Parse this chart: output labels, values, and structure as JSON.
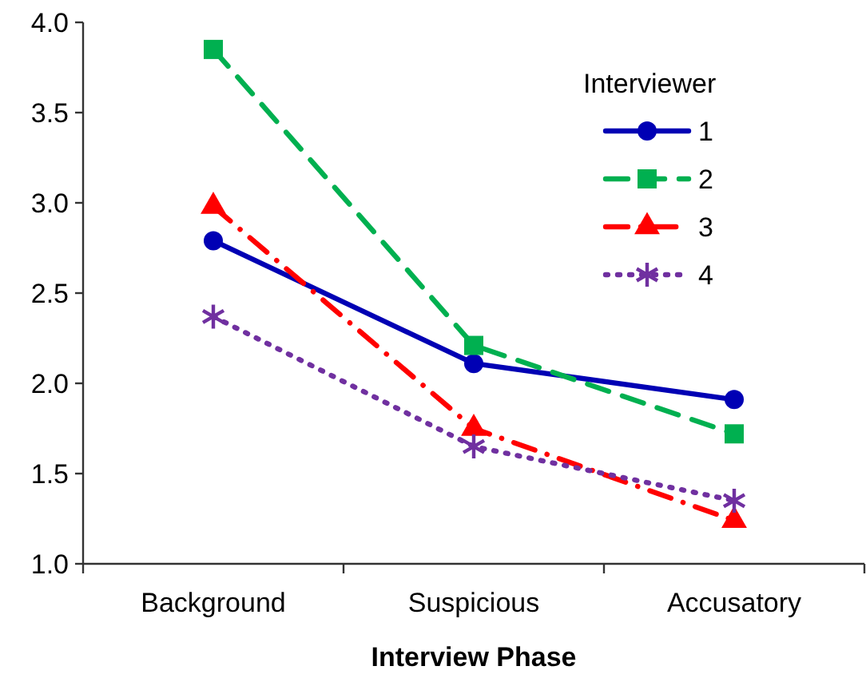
{
  "chart_data": {
    "type": "line",
    "xlabel": "Interview Phase",
    "legend_title": "Interviewer",
    "categories": [
      "Background",
      "Suspicious",
      "Accusatory"
    ],
    "ylim": [
      1.0,
      4.0
    ],
    "yticks": [
      {
        "value": 1,
        "label": "1.0"
      },
      {
        "value": 1.5,
        "label": "1.5"
      },
      {
        "value": 2,
        "label": "2.0"
      },
      {
        "value": 2.5,
        "label": "2.5"
      },
      {
        "value": 3,
        "label": "3.0"
      },
      {
        "value": 3.5,
        "label": "3.5"
      },
      {
        "value": 4,
        "label": "4.0"
      }
    ],
    "grid": false,
    "legend": "top right",
    "series": [
      {
        "name": "1",
        "color": "#0000b4",
        "marker": "circle",
        "line_style": "solid",
        "values": [
          2.79,
          2.11,
          1.91
        ]
      },
      {
        "name": "2",
        "color": "#00b050",
        "marker": "square",
        "line_style": "dashed",
        "values": [
          3.85,
          2.21,
          1.72
        ]
      },
      {
        "name": "3",
        "color": "#ff0000",
        "marker": "triangle",
        "line_style": "dashdot",
        "values": [
          2.98,
          1.75,
          1.24
        ]
      },
      {
        "name": "4",
        "color": "#7030a0",
        "marker": "cross",
        "line_style": "dotted",
        "values": [
          2.37,
          1.65,
          1.35
        ]
      }
    ]
  }
}
